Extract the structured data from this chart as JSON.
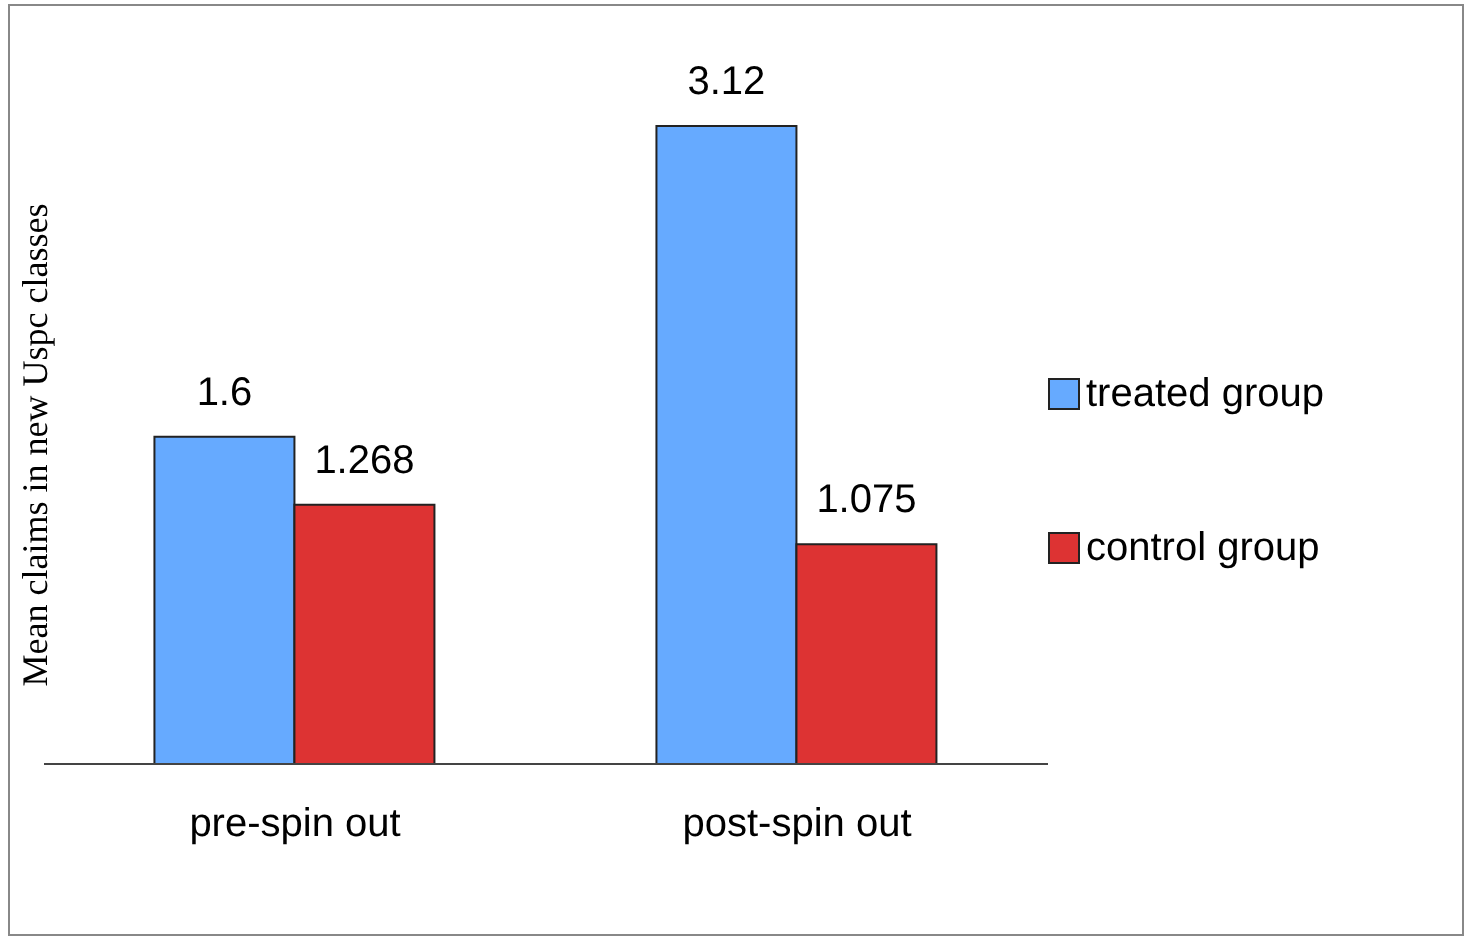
{
  "chart_data": {
    "type": "bar",
    "ylabel": "Mean claims in new Uspc classes",
    "categories": [
      "pre-spin out",
      "post-spin out"
    ],
    "series": [
      {
        "name": "treated group",
        "color": "#66aaff",
        "values": [
          1.6,
          3.12
        ]
      },
      {
        "name": "control group",
        "color": "#dd3333",
        "values": [
          1.268,
          1.075
        ]
      }
    ],
    "data_labels": true,
    "legend": "right",
    "grid": false
  }
}
